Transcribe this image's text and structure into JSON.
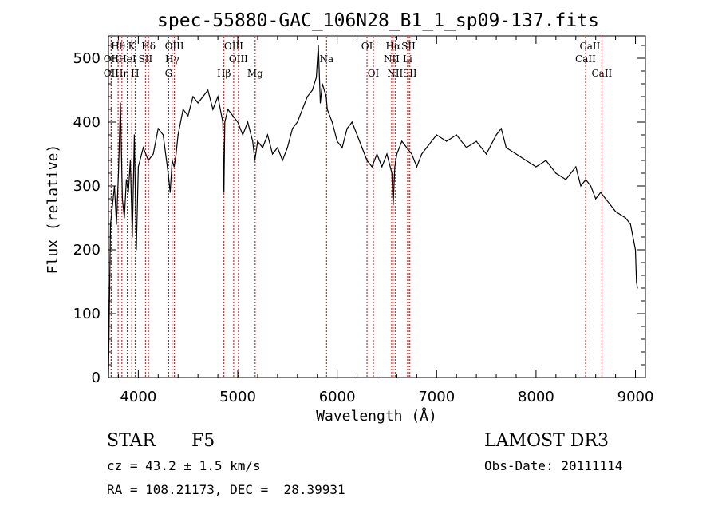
{
  "chart_data": {
    "type": "line",
    "title": "spec-55880-GAC_106N28_B1_1_sp09-137.fits",
    "xlabel": "Wavelength (Å)",
    "ylabel": "Flux (relative)",
    "xlim": [
      3700,
      9100
    ],
    "ylim": [
      0,
      535
    ],
    "x_ticks": [
      4000,
      5000,
      6000,
      7000,
      8000,
      9000
    ],
    "y_ticks": [
      0,
      100,
      200,
      300,
      400,
      500
    ],
    "grid": false,
    "series": [
      {
        "name": "flux",
        "color": "#000000",
        "x": [
          3700,
          3720,
          3740,
          3760,
          3780,
          3800,
          3820,
          3840,
          3860,
          3880,
          3900,
          3920,
          3940,
          3960,
          3980,
          4000,
          4050,
          4100,
          4150,
          4200,
          4250,
          4300,
          4320,
          4340,
          4360,
          4380,
          4400,
          4450,
          4500,
          4550,
          4600,
          4650,
          4700,
          4750,
          4800,
          4850,
          4861,
          4870,
          4900,
          4950,
          5000,
          5050,
          5100,
          5150,
          5172,
          5200,
          5250,
          5300,
          5350,
          5400,
          5450,
          5500,
          5550,
          5600,
          5650,
          5700,
          5750,
          5790,
          5810,
          5830,
          5850,
          5890,
          5900,
          5950,
          6000,
          6050,
          6100,
          6150,
          6200,
          6250,
          6300,
          6350,
          6400,
          6450,
          6500,
          6550,
          6563,
          6580,
          6600,
          6650,
          6700,
          6750,
          6800,
          6850,
          6900,
          6950,
          7000,
          7100,
          7200,
          7300,
          7400,
          7500,
          7600,
          7650,
          7700,
          7800,
          7900,
          8000,
          8100,
          8200,
          8300,
          8400,
          8450,
          8500,
          8550,
          8600,
          8650,
          8700,
          8750,
          8800,
          8850,
          8900,
          8950,
          9000,
          9010,
          9020
        ],
        "values": [
          0,
          240,
          270,
          300,
          240,
          320,
          430,
          280,
          250,
          310,
          290,
          340,
          220,
          380,
          200,
          330,
          360,
          340,
          350,
          390,
          380,
          320,
          290,
          340,
          330,
          350,
          380,
          420,
          410,
          440,
          430,
          440,
          450,
          420,
          440,
          400,
          290,
          400,
          420,
          410,
          400,
          380,
          400,
          370,
          340,
          370,
          360,
          380,
          350,
          360,
          340,
          360,
          390,
          400,
          420,
          440,
          450,
          470,
          520,
          430,
          460,
          440,
          420,
          400,
          370,
          360,
          390,
          400,
          380,
          360,
          340,
          330,
          350,
          330,
          350,
          320,
          270,
          330,
          350,
          370,
          360,
          350,
          330,
          350,
          360,
          370,
          380,
          370,
          380,
          360,
          370,
          350,
          380,
          390,
          360,
          350,
          340,
          330,
          340,
          320,
          310,
          330,
          300,
          310,
          300,
          280,
          290,
          280,
          270,
          260,
          255,
          250,
          240,
          200,
          150,
          140
        ]
      }
    ],
    "spectral_lines": [
      {
        "label": "Hθ",
        "x": 3797,
        "row": 0
      },
      {
        "label": "OII",
        "x": 3727,
        "row": 1
      },
      {
        "label": "OII",
        "x": 3727,
        "row": 2
      },
      {
        "label": "HeI",
        "x": 3889,
        "row": 1
      },
      {
        "label": "Hη",
        "x": 3835,
        "row": 2
      },
      {
        "label": "K",
        "x": 3934,
        "row": 0
      },
      {
        "label": "H",
        "x": 3968,
        "row": 2
      },
      {
        "label": "SII",
        "x": 4072,
        "row": 1
      },
      {
        "label": "Hδ",
        "x": 4102,
        "row": 0
      },
      {
        "label": "OIII",
        "x": 4363,
        "row": 0
      },
      {
        "label": "Hγ",
        "x": 4340,
        "row": 1
      },
      {
        "label": "G",
        "x": 4305,
        "row": 2
      },
      {
        "label": "Hβ",
        "x": 4861,
        "row": 2
      },
      {
        "label": "OIII",
        "x": 4959,
        "row": 0
      },
      {
        "label": "OIII",
        "x": 5007,
        "row": 1
      },
      {
        "label": "Mg",
        "x": 5175,
        "row": 2
      },
      {
        "label": "Na",
        "x": 5893,
        "row": 1
      },
      {
        "label": "OI",
        "x": 6300,
        "row": 0
      },
      {
        "label": "OI",
        "x": 6364,
        "row": 2
      },
      {
        "label": "Hα",
        "x": 6563,
        "row": 0
      },
      {
        "label": "NII",
        "x": 6548,
        "row": 1
      },
      {
        "label": "NII",
        "x": 6583,
        "row": 2
      },
      {
        "label": "SII",
        "x": 6717,
        "row": 0
      },
      {
        "label": "Li",
        "x": 6708,
        "row": 1
      },
      {
        "label": "SII",
        "x": 6731,
        "row": 2
      },
      {
        "label": "CaII",
        "x": 8542,
        "row": 0
      },
      {
        "label": "CaII",
        "x": 8498,
        "row": 1
      },
      {
        "label": "CaII",
        "x": 8662,
        "row": 2
      }
    ],
    "line_marker_color": "#cc0000"
  },
  "info": {
    "object_class": "STAR",
    "subclass": "F5",
    "survey": "LAMOST DR3",
    "redshift": "cz = 43.2 ± 1.5 km/s",
    "obs_date": "Obs-Date: 20111114",
    "coords": "RA = 108.21173, DEC =  28.39931"
  }
}
